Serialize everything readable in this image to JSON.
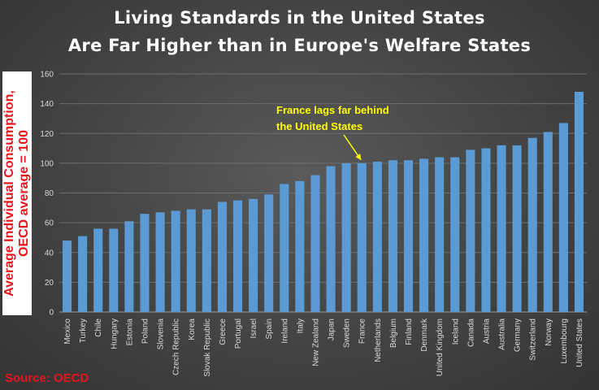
{
  "chart_data": {
    "type": "bar",
    "title": "Living Standards in the United States",
    "subtitle": "Are Far Higher than in Europe's Welfare States",
    "ylabel": "Average Individual Consumption, OECD average = 100",
    "xlabel": "",
    "ylim": [
      0,
      160
    ],
    "yticks": [
      "0",
      "20",
      "40",
      "60",
      "80",
      "100",
      "120",
      "140",
      "160"
    ],
    "grid": true,
    "bar_color": "#5b9bd5",
    "categories": [
      "Mexico",
      "Turkey",
      "Chile",
      "Hungary",
      "Estonia",
      "Poland",
      "Slovenia",
      "Czech Republic",
      "Korea",
      "Slovak Republic",
      "Greece",
      "Portugal",
      "Israel",
      "Spain",
      "Ireland",
      "Italy",
      "New Zealand",
      "Japan",
      "Sweden",
      "France",
      "Netherlands",
      "Belgium",
      "Finland",
      "Denmark",
      "United Kingdom",
      "Iceland",
      "Canada",
      "Austria",
      "Australia",
      "Germany",
      "Switzerland",
      "Norway",
      "Luxembourg",
      "United States"
    ],
    "values": [
      48,
      51,
      56,
      56,
      61,
      66,
      67,
      68,
      69,
      69,
      74,
      75,
      76,
      79,
      86,
      88,
      92,
      98,
      100,
      100,
      101,
      102,
      102,
      103,
      104,
      104,
      109,
      110,
      112,
      112,
      117,
      121,
      127,
      148
    ],
    "annotation": {
      "line1": "France lags far behind",
      "line2": "the United States",
      "target": "France"
    },
    "source": "Source: OECD"
  }
}
